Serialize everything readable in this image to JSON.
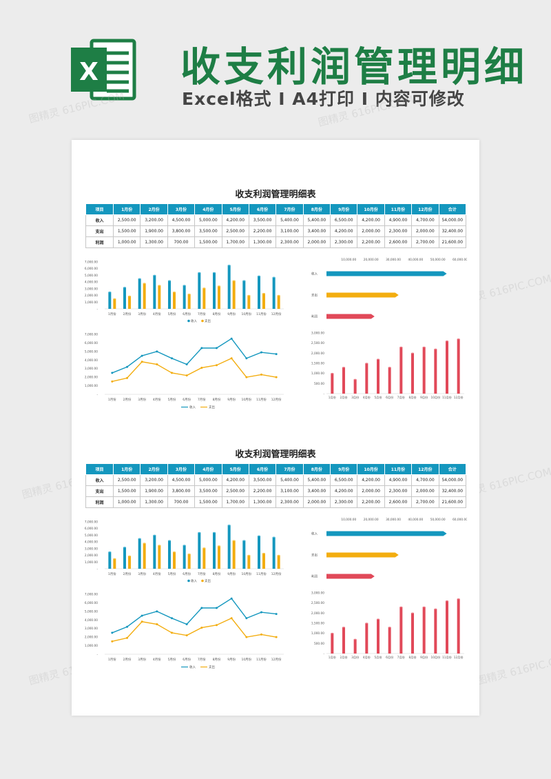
{
  "hero": {
    "logo_letter": "X",
    "title": "收支利润管理明细",
    "subtitle": "Excel格式 I A4打印 I 内容可修改"
  },
  "sheet": {
    "title": "收支利润管理明细表",
    "headers": [
      "项目",
      "1月份",
      "2月份",
      "3月份",
      "4月份",
      "5月份",
      "6月份",
      "7月份",
      "8月份",
      "9月份",
      "10月份",
      "11月份",
      "12月份",
      "合计"
    ],
    "rows": [
      {
        "label": "收入",
        "values": [
          "2,500.00",
          "3,200.00",
          "4,500.00",
          "5,000.00",
          "4,200.00",
          "3,500.00",
          "5,400.00",
          "5,400.00",
          "6,500.00",
          "4,200.00",
          "4,900.00",
          "4,700.00",
          "54,000.00"
        ]
      },
      {
        "label": "支出",
        "values": [
          "1,500.00",
          "1,900.00",
          "3,800.00",
          "3,500.00",
          "2,500.00",
          "2,200.00",
          "3,100.00",
          "3,400.00",
          "4,200.00",
          "2,000.00",
          "2,300.00",
          "2,000.00",
          "32,400.00"
        ]
      },
      {
        "label": "利润",
        "values": [
          "1,000.00",
          "1,300.00",
          "700.00",
          "1,500.00",
          "1,700.00",
          "1,300.00",
          "2,300.00",
          "2,000.00",
          "2,300.00",
          "2,200.00",
          "2,600.00",
          "2,700.00",
          "21,600.00"
        ]
      }
    ]
  },
  "colors": {
    "income": "#1497be",
    "expense": "#f3ad0f",
    "profit": "#e14959",
    "brand_green": "#1e7e45"
  },
  "watermark": "图精灵 616PIC.COM",
  "chart_data": [
    {
      "type": "bar",
      "id": "income_expense_bars",
      "categories": [
        "1月份",
        "2月份",
        "3月份",
        "4月份",
        "5月份",
        "6月份",
        "7月份",
        "8月份",
        "9月份",
        "10月份",
        "11月份",
        "12月份"
      ],
      "series": [
        {
          "name": "收入",
          "values": [
            2500,
            3200,
            4500,
            5000,
            4200,
            3500,
            5400,
            5400,
            6500,
            4200,
            4900,
            4700
          ]
        },
        {
          "name": "支出",
          "values": [
            1500,
            1900,
            3800,
            3500,
            2500,
            2200,
            3100,
            3400,
            4200,
            2000,
            2300,
            2000
          ]
        }
      ],
      "yticks": [
        "-",
        "1,000.00",
        "2,000.00",
        "3,000.00",
        "4,000.00",
        "5,000.00",
        "6,000.00",
        "7,000.00"
      ],
      "ylim": [
        0,
        7000
      ],
      "legend": "bottom"
    },
    {
      "type": "bar",
      "id": "totals_horizontal",
      "orientation": "horizontal",
      "categories": [
        "收入",
        "支出",
        "利润"
      ],
      "values": [
        54000,
        32400,
        21600
      ],
      "xticks": [
        "10,000.00",
        "20,000.00",
        "30,000.00",
        "40,000.00",
        "50,000.00",
        "60,000.00"
      ],
      "xlim": [
        0,
        60000
      ],
      "axis_position": "top"
    },
    {
      "type": "line",
      "id": "income_expense_lines",
      "categories": [
        "1月份",
        "2月份",
        "3月份",
        "4月份",
        "5月份",
        "6月份",
        "7月份",
        "8月份",
        "9月份",
        "10月份",
        "11月份",
        "12月份"
      ],
      "series": [
        {
          "name": "收入",
          "values": [
            2500,
            3200,
            4500,
            5000,
            4200,
            3500,
            5400,
            5400,
            6500,
            4200,
            4900,
            4700
          ]
        },
        {
          "name": "支出",
          "values": [
            1500,
            1900,
            3800,
            3500,
            2500,
            2200,
            3100,
            3400,
            4200,
            2000,
            2300,
            2000
          ]
        }
      ],
      "yticks": [
        "-",
        "1,000.00",
        "2,000.00",
        "3,000.00",
        "4,000.00",
        "5,000.00",
        "6,000.00",
        "7,000.00"
      ],
      "ylim": [
        0,
        7000
      ],
      "legend": "bottom"
    },
    {
      "type": "bar",
      "id": "profit_bars",
      "categories": [
        "1月份",
        "2月份",
        "3月份",
        "4月份",
        "5月份",
        "6月份",
        "7月份",
        "8月份",
        "9月份",
        "10月份",
        "11月份",
        "12月份"
      ],
      "values": [
        1000,
        1300,
        700,
        1500,
        1700,
        1300,
        2300,
        2000,
        2300,
        2200,
        2600,
        2700
      ],
      "yticks": [
        "-",
        "500.00",
        "1,000.00",
        "1,500.00",
        "2,000.00",
        "2,500.00",
        "3,000.00"
      ],
      "ylim": [
        0,
        3000
      ]
    }
  ]
}
